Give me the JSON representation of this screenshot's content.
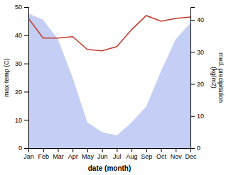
{
  "chart_data": {
    "type": "line",
    "categories": [
      "Jan",
      "Feb",
      "Mar",
      "Apr",
      "May",
      "Jun",
      "Jul",
      "Aug",
      "Sep",
      "Oct",
      "Nov",
      "Dec"
    ],
    "xlabel": "date (month)",
    "ylabel": "max temp (C)",
    "y2label": "med. precipitation\n(kg/m2)",
    "series": [
      {
        "type": "area",
        "axis": "y2",
        "color": "#c5cff5",
        "values": [
          42,
          40,
          34,
          22,
          8,
          5,
          4,
          8,
          13,
          24,
          34,
          39
        ]
      },
      {
        "type": "line",
        "color": "#c0392b",
        "values": [
          46,
          39,
          39,
          39.5,
          35,
          34.5,
          36,
          42,
          47,
          45,
          46,
          46.5
        ]
      }
    ],
    "ylim": [
      0,
      50
    ],
    "yticks": [
      0,
      10,
      20,
      30,
      40,
      50
    ],
    "y2lim": [
      0,
      44
    ],
    "y2ticks": [
      0,
      10,
      20,
      30,
      40
    ],
    "grid": false
  }
}
